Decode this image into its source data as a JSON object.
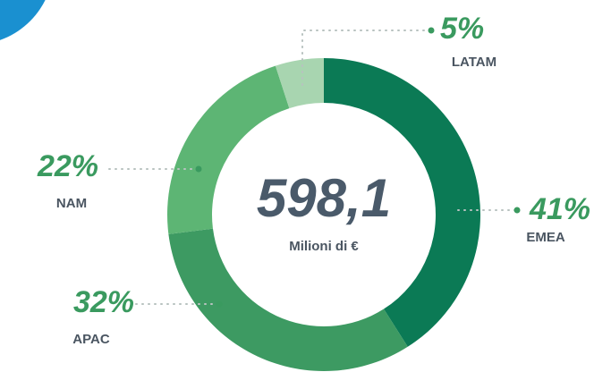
{
  "chart_data": {
    "type": "donut",
    "categories": [
      "EMEA",
      "APAC",
      "NAM",
      "LATAM"
    ],
    "values": [
      41,
      32,
      22,
      5
    ],
    "value_labels": [
      "41%",
      "32%",
      "22%",
      "5%"
    ],
    "colors": [
      "#0b7a55",
      "#3d9a62",
      "#5db574",
      "#a8d5b0"
    ],
    "total": {
      "value": 598.1,
      "label": "598,1"
    },
    "total_caption": "Milioni di €"
  }
}
